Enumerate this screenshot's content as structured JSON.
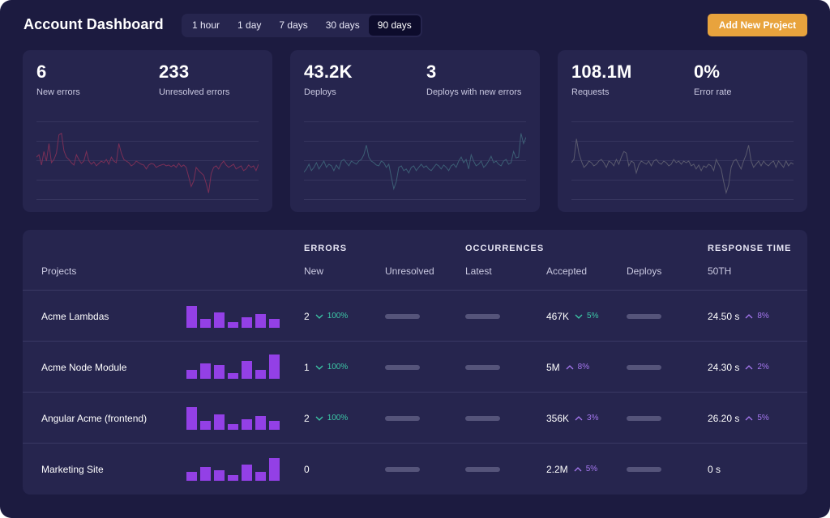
{
  "header": {
    "title": "Account Dashboard",
    "time_ranges": [
      "1 hour",
      "1 day",
      "7 days",
      "30 days",
      "90 days"
    ],
    "active_range": "90 days",
    "add_button": "Add New Project"
  },
  "cards": [
    {
      "metrics": [
        {
          "value": "6",
          "label": "New errors"
        },
        {
          "value": "233",
          "label": "Unresolved errors"
        }
      ],
      "spark_color": "#7a2f56",
      "spark": [
        0.55,
        0.58,
        0.45,
        0.62,
        0.5,
        0.72,
        0.48,
        0.52,
        0.6,
        0.83,
        0.85,
        0.63,
        0.55,
        0.52,
        0.48,
        0.45,
        0.58,
        0.52,
        0.47,
        0.5,
        0.62,
        0.5,
        0.46,
        0.49,
        0.44,
        0.47,
        0.5,
        0.48,
        0.52,
        0.46,
        0.55,
        0.5,
        0.48,
        0.72,
        0.6,
        0.52,
        0.5,
        0.48,
        0.44,
        0.46,
        0.5,
        0.48,
        0.46,
        0.45,
        0.4,
        0.45,
        0.47,
        0.46,
        0.42,
        0.44,
        0.45,
        0.46,
        0.44,
        0.45,
        0.43,
        0.45,
        0.42,
        0.47,
        0.43,
        0.45,
        0.42,
        0.3,
        0.18,
        0.25,
        0.42,
        0.38,
        0.35,
        0.32,
        0.22,
        0.1,
        0.34,
        0.42,
        0.44,
        0.4,
        0.46,
        0.5,
        0.45,
        0.42,
        0.44,
        0.46,
        0.4,
        0.42,
        0.44,
        0.38,
        0.4,
        0.45,
        0.42,
        0.44,
        0.38,
        0.46
      ]
    },
    {
      "metrics": [
        {
          "value": "43.2K",
          "label": "Deploys"
        },
        {
          "value": "3",
          "label": "Deploys with new errors"
        }
      ],
      "spark_color": "#3c5e75",
      "spark": [
        0.36,
        0.4,
        0.46,
        0.38,
        0.42,
        0.48,
        0.4,
        0.45,
        0.5,
        0.42,
        0.46,
        0.44,
        0.38,
        0.45,
        0.4,
        0.5,
        0.52,
        0.48,
        0.44,
        0.5,
        0.48,
        0.46,
        0.5,
        0.52,
        0.58,
        0.7,
        0.55,
        0.5,
        0.48,
        0.45,
        0.44,
        0.5,
        0.48,
        0.42,
        0.46,
        0.3,
        0.15,
        0.24,
        0.42,
        0.44,
        0.38,
        0.4,
        0.35,
        0.42,
        0.44,
        0.38,
        0.42,
        0.46,
        0.42,
        0.44,
        0.4,
        0.38,
        0.42,
        0.46,
        0.44,
        0.4,
        0.45,
        0.42,
        0.38,
        0.44,
        0.46,
        0.42,
        0.5,
        0.55,
        0.48,
        0.52,
        0.4,
        0.58,
        0.5,
        0.44,
        0.46,
        0.5,
        0.42,
        0.45,
        0.5,
        0.56,
        0.48,
        0.5,
        0.46,
        0.44,
        0.5,
        0.52,
        0.46,
        0.48,
        0.62,
        0.54,
        0.55,
        0.85,
        0.72,
        0.8
      ]
    },
    {
      "metrics": [
        {
          "value": "108.1M",
          "label": "Requests"
        },
        {
          "value": "0%",
          "label": "Error rate"
        }
      ],
      "spark_color": "#5a5a6e",
      "spark": [
        0.48,
        0.52,
        0.78,
        0.6,
        0.5,
        0.42,
        0.45,
        0.5,
        0.48,
        0.44,
        0.46,
        0.5,
        0.52,
        0.48,
        0.42,
        0.5,
        0.48,
        0.44,
        0.52,
        0.46,
        0.55,
        0.62,
        0.6,
        0.44,
        0.5,
        0.48,
        0.35,
        0.45,
        0.5,
        0.48,
        0.46,
        0.5,
        0.44,
        0.5,
        0.52,
        0.48,
        0.46,
        0.5,
        0.48,
        0.44,
        0.46,
        0.52,
        0.48,
        0.5,
        0.46,
        0.5,
        0.48,
        0.5,
        0.44,
        0.46,
        0.4,
        0.45,
        0.38,
        0.44,
        0.42,
        0.46,
        0.44,
        0.38,
        0.52,
        0.46,
        0.4,
        0.24,
        0.1,
        0.2,
        0.42,
        0.5,
        0.52,
        0.46,
        0.4,
        0.5,
        0.58,
        0.7,
        0.5,
        0.42,
        0.46,
        0.5,
        0.44,
        0.5,
        0.46,
        0.44,
        0.48,
        0.5,
        0.42,
        0.5,
        0.46,
        0.42,
        0.5,
        0.44,
        0.48,
        0.46
      ]
    }
  ],
  "table": {
    "group_headers": {
      "errors": "ERRORS",
      "occurrences": "OCCURRENCES",
      "response_time": "RESPONSE TIME"
    },
    "columns": {
      "projects": "Projects",
      "new": "New",
      "unresolved": "Unresolved",
      "latest": "Latest",
      "accepted": "Accepted",
      "deploys": "Deploys",
      "p50": "50TH"
    },
    "rows": [
      {
        "name": "Acme Lambdas",
        "bars": [
          27,
          11,
          19,
          7,
          13,
          17,
          11
        ],
        "new": "2",
        "new_delta": "100%",
        "new_dir": "down",
        "accepted": "467K",
        "accepted_delta": "5%",
        "accepted_dir": "down",
        "p50": "24.50 s",
        "p50_delta": "8%",
        "p50_dir": "up"
      },
      {
        "name": "Acme Node Module",
        "bars": [
          11,
          19,
          17,
          7,
          22,
          11,
          30
        ],
        "new": "1",
        "new_delta": "100%",
        "new_dir": "down",
        "accepted": "5M",
        "accepted_delta": "8%",
        "accepted_dir": "up",
        "p50": "24.30 s",
        "p50_delta": "2%",
        "p50_dir": "up"
      },
      {
        "name": "Angular Acme (frontend)",
        "bars": [
          28,
          11,
          19,
          7,
          13,
          17,
          11
        ],
        "new": "2",
        "new_delta": "100%",
        "new_dir": "down",
        "accepted": "356K",
        "accepted_delta": "3%",
        "accepted_dir": "up",
        "p50": "26.20 s",
        "p50_delta": "5%",
        "p50_dir": "up"
      },
      {
        "name": "Marketing Site",
        "bars": [
          11,
          17,
          13,
          7,
          20,
          11,
          28
        ],
        "new": "0",
        "new_delta": "",
        "new_dir": "",
        "accepted": "2.2M",
        "accepted_delta": "5%",
        "accepted_dir": "up",
        "p50": "0 s",
        "p50_delta": "",
        "p50_dir": ""
      }
    ]
  },
  "colors": {
    "background": "#1c1b40",
    "card": "#26254e",
    "accent_orange": "#e8a33d",
    "bar_purple": "#9340e6",
    "delta_down": "#3cc9a7",
    "delta_up": "#a678f0"
  }
}
